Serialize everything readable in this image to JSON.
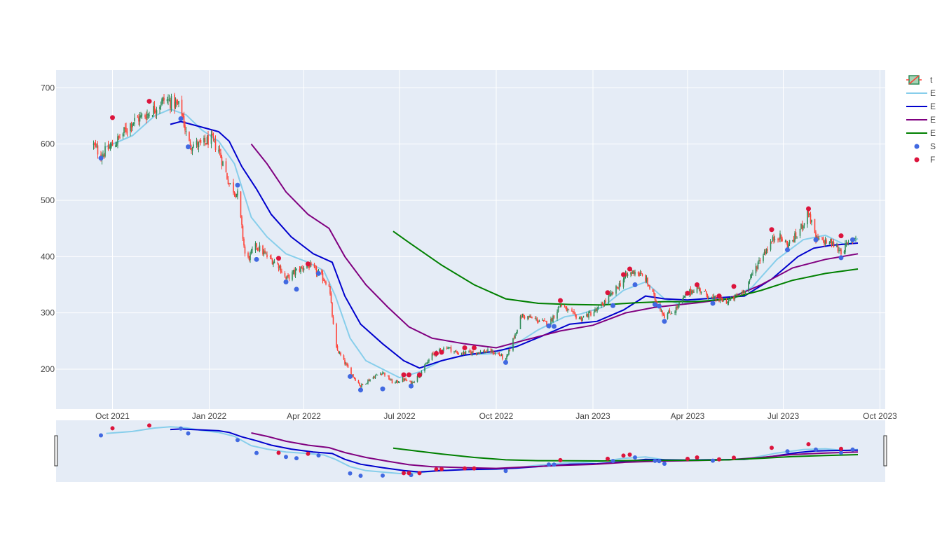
{
  "chart_data": {
    "type": "candlestick",
    "x_ticks": [
      "Oct 2021",
      "Jan 2022",
      "Apr 2022",
      "Jul 2022",
      "Oct 2022",
      "Jan 2023",
      "Apr 2023",
      "Jul 2023",
      "Oct 2023"
    ],
    "y_ticks": [
      "200",
      "300",
      "400",
      "500",
      "600",
      "700"
    ],
    "ylim": [
      128,
      700
    ],
    "grid": true,
    "legend_position": "right",
    "legend": [
      {
        "label": "t",
        "kind": "candle"
      },
      {
        "label": "E",
        "kind": "line",
        "color": "#87ceeb"
      },
      {
        "label": "E",
        "kind": "line",
        "color": "#0000cd"
      },
      {
        "label": "E",
        "kind": "line",
        "color": "#800080"
      },
      {
        "label": "E",
        "kind": "line",
        "color": "#008000"
      },
      {
        "label": "S",
        "kind": "marker",
        "color": "#4169e1"
      },
      {
        "label": "F",
        "kind": "marker",
        "color": "#dc143c"
      }
    ],
    "colors": {
      "up": "#2e8b57",
      "down": "#ff4136",
      "plot_bg": "#e5ecf6",
      "ema_fast": "#87ceeb",
      "ema_mid": "#0000cd",
      "ema_slow": "#800080",
      "ema_long": "#008000",
      "buy": "#4169e1",
      "sell": "#dc143c"
    },
    "close_anchors": [
      [
        "2021-09-12",
        600
      ],
      [
        "2021-09-20",
        580
      ],
      [
        "2021-10-05",
        605
      ],
      [
        "2021-10-20",
        640
      ],
      [
        "2021-11-05",
        655
      ],
      [
        "2021-11-20",
        680
      ],
      [
        "2021-12-05",
        665
      ],
      [
        "2021-12-12",
        600
      ],
      [
        "2021-12-25",
        598
      ],
      [
        "2022-01-02",
        610
      ],
      [
        "2022-01-10",
        590
      ],
      [
        "2022-01-20",
        530
      ],
      [
        "2022-01-28",
        510
      ],
      [
        "2022-02-05",
        390
      ],
      [
        "2022-02-15",
        420
      ],
      [
        "2022-02-25",
        400
      ],
      [
        "2022-03-08",
        385
      ],
      [
        "2022-03-15",
        360
      ],
      [
        "2022-03-25",
        375
      ],
      [
        "2022-04-05",
        385
      ],
      [
        "2022-04-15",
        370
      ],
      [
        "2022-04-25",
        350
      ],
      [
        "2022-05-01",
        240
      ],
      [
        "2022-05-15",
        195
      ],
      [
        "2022-05-25",
        170
      ],
      [
        "2022-06-05",
        185
      ],
      [
        "2022-06-15",
        195
      ],
      [
        "2022-06-25",
        175
      ],
      [
        "2022-07-05",
        182
      ],
      [
        "2022-07-12",
        175
      ],
      [
        "2022-07-20",
        190
      ],
      [
        "2022-08-01",
        225
      ],
      [
        "2022-08-15",
        240
      ],
      [
        "2022-08-25",
        228
      ],
      [
        "2022-09-10",
        230
      ],
      [
        "2022-09-25",
        232
      ],
      [
        "2022-10-05",
        225
      ],
      [
        "2022-10-10",
        215
      ],
      [
        "2022-10-25",
        295
      ],
      [
        "2022-11-05",
        290
      ],
      [
        "2022-11-20",
        280
      ],
      [
        "2022-12-01",
        315
      ],
      [
        "2022-12-10",
        300
      ],
      [
        "2022-12-20",
        290
      ],
      [
        "2023-01-05",
        305
      ],
      [
        "2023-01-20",
        335
      ],
      [
        "2023-02-01",
        365
      ],
      [
        "2023-02-10",
        375
      ],
      [
        "2023-02-20",
        360
      ],
      [
        "2023-03-01",
        325
      ],
      [
        "2023-03-10",
        295
      ],
      [
        "2023-03-20",
        305
      ],
      [
        "2023-04-01",
        335
      ],
      [
        "2023-04-10",
        345
      ],
      [
        "2023-04-25",
        325
      ],
      [
        "2023-05-10",
        320
      ],
      [
        "2023-05-25",
        340
      ],
      [
        "2023-06-10",
        400
      ],
      [
        "2023-06-25",
        440
      ],
      [
        "2023-07-05",
        420
      ],
      [
        "2023-07-15",
        440
      ],
      [
        "2023-07-25",
        480
      ],
      [
        "2023-08-01",
        430
      ],
      [
        "2023-08-15",
        425
      ],
      [
        "2023-08-25",
        410
      ],
      [
        "2023-09-05",
        430
      ],
      [
        "2023-09-10",
        442
      ]
    ],
    "ema_fast": [
      [
        "2021-09-25",
        595
      ],
      [
        "2021-10-20",
        615
      ],
      [
        "2021-11-10",
        650
      ],
      [
        "2021-11-25",
        662
      ],
      [
        "2021-12-10",
        652
      ],
      [
        "2021-12-25",
        625
      ],
      [
        "2022-01-10",
        605
      ],
      [
        "2022-01-25",
        565
      ],
      [
        "2022-02-10",
        470
      ],
      [
        "2022-02-25",
        435
      ],
      [
        "2022-03-15",
        405
      ],
      [
        "2022-04-05",
        390
      ],
      [
        "2022-04-20",
        375
      ],
      [
        "2022-05-01",
        330
      ],
      [
        "2022-05-15",
        255
      ],
      [
        "2022-05-30",
        215
      ],
      [
        "2022-06-15",
        200
      ],
      [
        "2022-07-01",
        185
      ],
      [
        "2022-07-20",
        195
      ],
      [
        "2022-08-10",
        215
      ],
      [
        "2022-09-01",
        225
      ],
      [
        "2022-10-01",
        228
      ],
      [
        "2022-10-20",
        245
      ],
      [
        "2022-11-10",
        270
      ],
      [
        "2022-12-05",
        293
      ],
      [
        "2022-12-20",
        298
      ],
      [
        "2023-01-10",
        310
      ],
      [
        "2023-01-30",
        340
      ],
      [
        "2023-02-20",
        355
      ],
      [
        "2023-03-10",
        325
      ],
      [
        "2023-03-25",
        315
      ],
      [
        "2023-04-15",
        325
      ],
      [
        "2023-05-10",
        325
      ],
      [
        "2023-06-01",
        345
      ],
      [
        "2023-06-25",
        395
      ],
      [
        "2023-07-20",
        430
      ],
      [
        "2023-08-10",
        438
      ],
      [
        "2023-08-30",
        420
      ],
      [
        "2023-09-10",
        432
      ]
    ],
    "ema_mid": [
      [
        "2021-11-25",
        635
      ],
      [
        "2021-12-05",
        640
      ],
      [
        "2021-12-25",
        630
      ],
      [
        "2022-01-10",
        622
      ],
      [
        "2022-01-20",
        605
      ],
      [
        "2022-02-01",
        560
      ],
      [
        "2022-02-15",
        520
      ],
      [
        "2022-03-01",
        475
      ],
      [
        "2022-03-20",
        435
      ],
      [
        "2022-04-10",
        405
      ],
      [
        "2022-04-28",
        390
      ],
      [
        "2022-05-10",
        330
      ],
      [
        "2022-05-25",
        280
      ],
      [
        "2022-06-15",
        245
      ],
      [
        "2022-07-05",
        215
      ],
      [
        "2022-07-20",
        202
      ],
      [
        "2022-08-10",
        215
      ],
      [
        "2022-09-01",
        225
      ],
      [
        "2022-10-01",
        232
      ],
      [
        "2022-10-20",
        240
      ],
      [
        "2022-11-15",
        260
      ],
      [
        "2022-12-10",
        280
      ],
      [
        "2023-01-05",
        285
      ],
      [
        "2023-01-30",
        305
      ],
      [
        "2023-02-20",
        330
      ],
      [
        "2023-03-10",
        325
      ],
      [
        "2023-04-01",
        323
      ],
      [
        "2023-05-01",
        327
      ],
      [
        "2023-05-25",
        330
      ],
      [
        "2023-06-20",
        360
      ],
      [
        "2023-07-15",
        400
      ],
      [
        "2023-07-30",
        415
      ],
      [
        "2023-08-15",
        420
      ],
      [
        "2023-09-10",
        424
      ]
    ],
    "ema_slow": [
      [
        "2022-02-10",
        600
      ],
      [
        "2022-02-25",
        565
      ],
      [
        "2022-03-15",
        515
      ],
      [
        "2022-04-05",
        475
      ],
      [
        "2022-04-25",
        450
      ],
      [
        "2022-05-10",
        400
      ],
      [
        "2022-05-30",
        350
      ],
      [
        "2022-06-20",
        310
      ],
      [
        "2022-07-10",
        275
      ],
      [
        "2022-08-01",
        255
      ],
      [
        "2022-09-01",
        245
      ],
      [
        "2022-10-01",
        238
      ],
      [
        "2022-10-25",
        250
      ],
      [
        "2022-12-01",
        268
      ],
      [
        "2023-01-01",
        278
      ],
      [
        "2023-02-01",
        300
      ],
      [
        "2023-03-01",
        310
      ],
      [
        "2023-04-10",
        318
      ],
      [
        "2023-05-10",
        325
      ],
      [
        "2023-06-10",
        350
      ],
      [
        "2023-07-10",
        380
      ],
      [
        "2023-08-10",
        395
      ],
      [
        "2023-09-10",
        405
      ]
    ],
    "ema_long": [
      [
        "2022-06-25",
        445
      ],
      [
        "2022-07-10",
        425
      ],
      [
        "2022-08-10",
        385
      ],
      [
        "2022-09-10",
        350
      ],
      [
        "2022-10-10",
        325
      ],
      [
        "2022-11-10",
        317
      ],
      [
        "2022-12-10",
        315
      ],
      [
        "2023-01-10",
        314
      ],
      [
        "2023-02-10",
        318
      ],
      [
        "2023-03-10",
        320
      ],
      [
        "2023-04-10",
        320
      ],
      [
        "2023-05-10",
        325
      ],
      [
        "2023-06-10",
        340
      ],
      [
        "2023-07-10",
        358
      ],
      [
        "2023-08-10",
        370
      ],
      [
        "2023-09-10",
        378
      ]
    ],
    "buy_signals": [
      [
        "2021-09-20",
        575
      ],
      [
        "2021-12-05",
        645
      ],
      [
        "2021-12-12",
        595
      ],
      [
        "2022-01-28",
        527
      ],
      [
        "2022-02-15",
        395
      ],
      [
        "2022-03-15",
        355
      ],
      [
        "2022-03-25",
        342
      ],
      [
        "2022-04-15",
        370
      ],
      [
        "2022-05-15",
        187
      ],
      [
        "2022-05-25",
        163
      ],
      [
        "2022-06-15",
        165
      ],
      [
        "2022-07-12",
        170
      ],
      [
        "2022-10-10",
        212
      ],
      [
        "2022-11-20",
        277
      ],
      [
        "2022-11-25",
        276
      ],
      [
        "2023-01-20",
        313
      ],
      [
        "2023-02-10",
        350
      ],
      [
        "2023-03-01",
        315
      ],
      [
        "2023-03-05",
        312
      ],
      [
        "2023-03-10",
        285
      ],
      [
        "2023-04-25",
        317
      ],
      [
        "2023-07-05",
        412
      ],
      [
        "2023-08-01",
        430
      ],
      [
        "2023-08-25",
        398
      ],
      [
        "2023-09-05",
        430
      ]
    ],
    "sell_signals": [
      [
        "2021-10-01",
        647
      ],
      [
        "2021-11-05",
        676
      ],
      [
        "2022-03-08",
        397
      ],
      [
        "2022-04-05",
        387
      ],
      [
        "2022-07-05",
        190
      ],
      [
        "2022-07-10",
        190
      ],
      [
        "2022-07-20",
        190
      ],
      [
        "2022-08-05",
        228
      ],
      [
        "2022-08-10",
        230
      ],
      [
        "2022-09-01",
        238
      ],
      [
        "2022-09-10",
        238
      ],
      [
        "2022-12-01",
        322
      ],
      [
        "2023-01-15",
        336
      ],
      [
        "2023-01-30",
        368
      ],
      [
        "2023-02-05",
        378
      ],
      [
        "2023-04-01",
        335
      ],
      [
        "2023-04-10",
        350
      ],
      [
        "2023-05-01",
        330
      ],
      [
        "2023-05-15",
        347
      ],
      [
        "2023-06-20",
        448
      ],
      [
        "2023-07-25",
        485
      ],
      [
        "2023-08-25",
        437
      ]
    ]
  }
}
